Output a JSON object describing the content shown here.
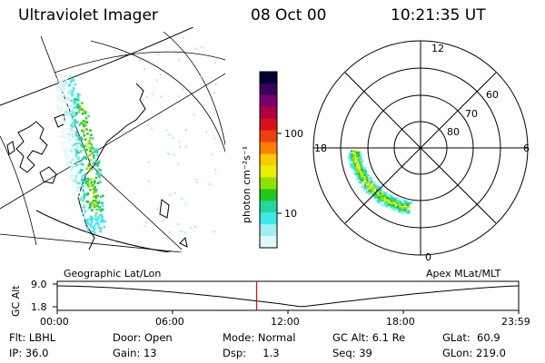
{
  "header": {
    "instrument": "Ultraviolet Imager",
    "date": "08 Oct 00",
    "time": "10:21:35 UT"
  },
  "colorbar": {
    "unit_label": "photon cm⁻²s⁻¹",
    "ticks": [
      "100",
      "10"
    ],
    "colors": [
      "#000033",
      "#3a0060",
      "#7a0070",
      "#b00040",
      "#d8101a",
      "#f04010",
      "#ff8000",
      "#ffc800",
      "#e8f000",
      "#90e000",
      "#20c820",
      "#20d8a0",
      "#40e8e8",
      "#a0f0f0",
      "#e0f8f8"
    ]
  },
  "left_panel": {
    "title": "Geographic Lat/Lon"
  },
  "right_panel": {
    "title": "Apex MLat/MLT",
    "mlt_labels": {
      "top": "12",
      "right": "6",
      "bottom": "0",
      "left": "18"
    },
    "mlat_labels": [
      "80",
      "70",
      "60"
    ]
  },
  "timeline": {
    "ylabel": "GC Alt",
    "ytick_top": "9.0",
    "ytick_bottom": "1.8",
    "xticks": [
      "00:00",
      "06:00",
      "12:00",
      "18:00",
      "23:59"
    ],
    "current_time_fraction": 0.432,
    "marker_color": "#ff0000"
  },
  "info": {
    "filter": "Flt: LBHL",
    "ip": "IP: 36.0",
    "door": "Door: Open",
    "gain": "Gain: 13",
    "mode": "Mode: Normal",
    "dsp": "Dsp:     1.3",
    "gc_alt": "GC Alt: 6.1 Re",
    "seq": "Seq: 39",
    "glat": "GLat:  60.9",
    "glon": "GLon: 219.0"
  }
}
